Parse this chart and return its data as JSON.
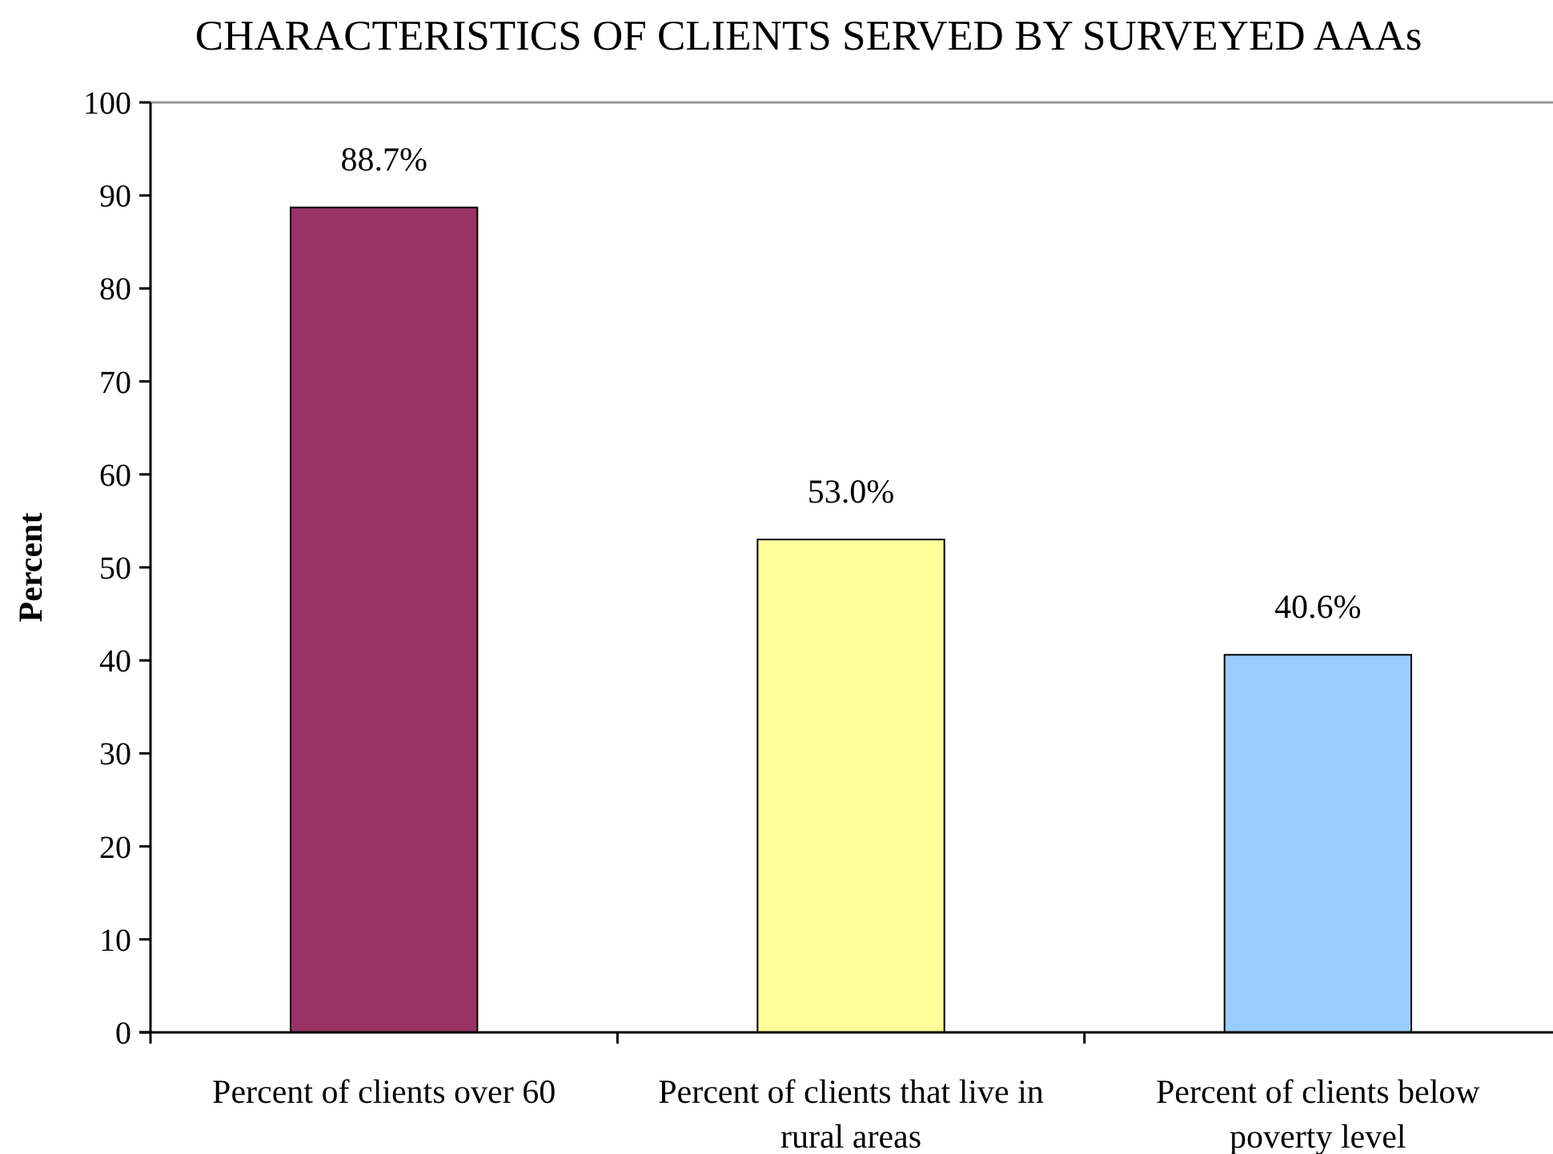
{
  "chart_data": {
    "type": "bar",
    "title": "CHARACTERISTICS OF CLIENTS SERVED BY SURVEYED AAAs",
    "ylabel": "Percent",
    "categories": [
      "Percent of clients over 60",
      "Percent of clients that live in rural areas",
      "Percent of clients below poverty level"
    ],
    "values": [
      88.7,
      53.0,
      40.6
    ],
    "colors": [
      "#993366",
      "#ffff99",
      "#99ccff"
    ],
    "value_labels": [
      "88.7%",
      "53.0%",
      "40.6%"
    ],
    "ylim": [
      0,
      100
    ],
    "yticks": [
      0,
      10,
      20,
      30,
      40,
      50,
      60,
      70,
      80,
      90,
      100
    ]
  }
}
